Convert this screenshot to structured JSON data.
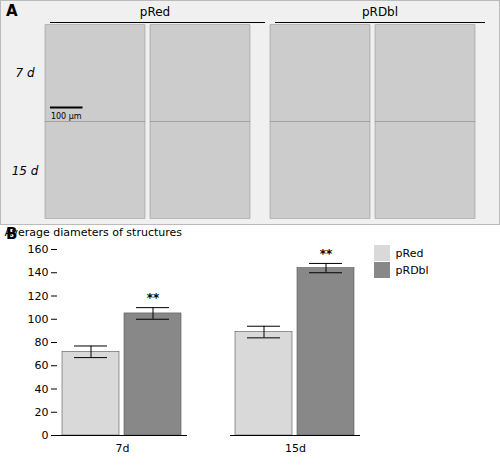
{
  "chart_data": {
    "type": "bar",
    "annotations": [
      "A",
      "pRed",
      "pRDbl",
      "7 d",
      "15 d",
      "100 μm",
      "B"
    ],
    "ylabel": "Average diameters of structures",
    "categories": [
      "7d",
      "15d"
    ],
    "series": [
      {
        "name": "pRed",
        "color": "#d9d9d9",
        "values": [
          72,
          89
        ],
        "errors": [
          5,
          5
        ]
      },
      {
        "name": "pRDbl",
        "color": "#888888",
        "values": [
          105,
          144
        ],
        "errors": [
          5,
          4
        ],
        "significance": [
          "**",
          "**"
        ]
      }
    ],
    "ylim": [
      0,
      160
    ],
    "yticks": [
      0,
      20,
      40,
      60,
      80,
      100,
      120,
      140,
      160
    ],
    "grid": false,
    "legend": "right"
  }
}
